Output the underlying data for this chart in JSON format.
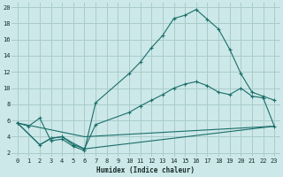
{
  "xlabel": "Humidex (Indice chaleur)",
  "bg_color": "#cce8e8",
  "grid_color": "#aacccc",
  "line_color": "#1a6e6a",
  "xlim": [
    -0.5,
    23.5
  ],
  "ylim": [
    1.5,
    20.5
  ],
  "xticks": [
    0,
    1,
    2,
    3,
    4,
    5,
    6,
    7,
    8,
    9,
    10,
    11,
    12,
    13,
    14,
    15,
    16,
    17,
    18,
    19,
    20,
    21,
    22,
    23
  ],
  "yticks": [
    2,
    4,
    6,
    8,
    10,
    12,
    14,
    16,
    18,
    20
  ],
  "curve1_x": [
    0,
    1,
    2,
    3,
    4,
    5,
    6,
    7,
    10,
    11,
    12,
    13,
    14,
    15,
    16,
    17,
    18,
    19,
    20,
    21,
    22,
    23
  ],
  "curve1_y": [
    5.7,
    5.3,
    6.3,
    3.5,
    3.7,
    2.8,
    2.3,
    8.2,
    11.8,
    13.2,
    15.0,
    16.5,
    18.6,
    19.0,
    19.7,
    18.5,
    17.3,
    14.8,
    11.8,
    9.5,
    9.0,
    8.5
  ],
  "curve2_x": [
    0,
    2,
    3,
    4,
    5,
    6,
    7,
    10,
    11,
    12,
    13,
    14,
    15,
    16,
    17,
    18,
    19,
    20,
    21,
    22,
    23
  ],
  "curve2_y": [
    5.7,
    3.0,
    3.8,
    4.0,
    3.0,
    2.5,
    5.5,
    7.0,
    7.8,
    8.5,
    9.2,
    10.0,
    10.5,
    10.8,
    10.3,
    9.5,
    9.2,
    10.0,
    9.0,
    8.8,
    5.3
  ],
  "curve3_x": [
    0,
    2,
    3,
    4,
    5,
    6,
    23
  ],
  "curve3_y": [
    5.7,
    3.0,
    3.8,
    4.0,
    3.2,
    2.5,
    5.3
  ],
  "curve4_x": [
    0,
    6,
    23
  ],
  "curve4_y": [
    5.7,
    4.0,
    5.3
  ]
}
